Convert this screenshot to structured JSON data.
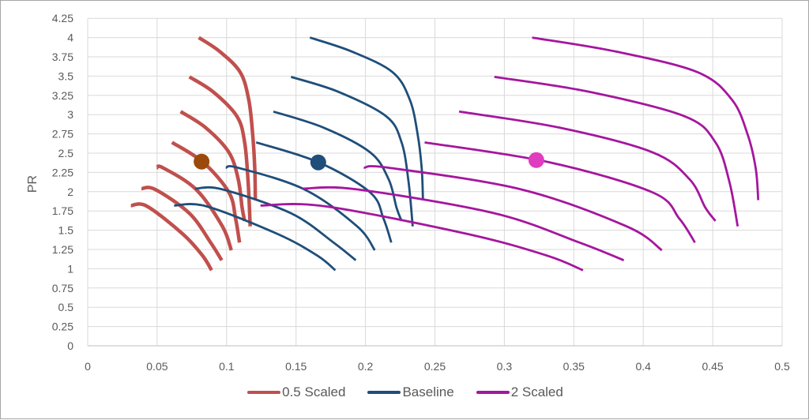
{
  "chart_data": {
    "type": "line",
    "title": "",
    "xlabel": "",
    "ylabel": "PR",
    "xlim": [
      0,
      0.5
    ],
    "ylim": [
      0,
      4.25
    ],
    "xticks": [
      "0",
      "0.05",
      "0.1",
      "0.15",
      "0.2",
      "0.25",
      "0.3",
      "0.35",
      "0.4",
      "0.45",
      "0.5"
    ],
    "yticks": [
      "0",
      "0.25",
      "0.5",
      "0.75",
      "1",
      "1.25",
      "1.5",
      "1.75",
      "2",
      "2.25",
      "2.5",
      "2.75",
      "3",
      "3.25",
      "3.5",
      "3.75",
      "4",
      "4.25"
    ],
    "grid": true,
    "legend_position": "bottom",
    "series": [
      {
        "name": "0.5 Scaled",
        "color": "#c0504d",
        "curves": [
          [
            [
              0.08,
              4.0
            ],
            [
              0.095,
              3.82
            ],
            [
              0.1098,
              3.55
            ],
            [
              0.116,
              3.19
            ],
            [
              0.1188,
              2.74
            ],
            [
              0.1203,
              2.3
            ],
            [
              0.1207,
              1.89
            ]
          ],
          [
            [
              0.0732,
              3.49
            ],
            [
              0.09,
              3.3
            ],
            [
              0.1074,
              2.98
            ],
            [
              0.113,
              2.64
            ],
            [
              0.1155,
              2.13
            ],
            [
              0.117,
              1.55
            ]
          ],
          [
            [
              0.0669,
              3.04
            ],
            [
              0.085,
              2.83
            ],
            [
              0.1017,
              2.51
            ],
            [
              0.1084,
              2.16
            ],
            [
              0.1112,
              1.79
            ],
            [
              0.113,
              1.62
            ]
          ],
          [
            [
              0.0607,
              2.64
            ],
            [
              0.0832,
              2.38
            ],
            [
              0.1017,
              1.99
            ],
            [
              0.1065,
              1.65
            ],
            [
              0.1093,
              1.34
            ]
          ],
          [
            [
              0.0497,
              2.31
            ],
            [
              0.0542,
              2.31
            ],
            [
              0.078,
              2.03
            ],
            [
              0.097,
              1.55
            ],
            [
              0.1034,
              1.24
            ]
          ],
          [
            [
              0.0387,
              2.04
            ],
            [
              0.0485,
              2.03
            ],
            [
              0.0732,
              1.72
            ],
            [
              0.0885,
              1.34
            ],
            [
              0.0965,
              1.11
            ]
          ],
          [
            [
              0.0311,
              1.82
            ],
            [
              0.0428,
              1.81
            ],
            [
              0.0685,
              1.45
            ],
            [
              0.0827,
              1.17
            ],
            [
              0.0892,
              0.98
            ]
          ]
        ]
      },
      {
        "name": "Baseline",
        "color": "#1f4e79",
        "curves": [
          [
            [
              0.16,
              4.0
            ],
            [
              0.19,
              3.82
            ],
            [
              0.2196,
              3.55
            ],
            [
              0.232,
              3.19
            ],
            [
              0.2376,
              2.74
            ],
            [
              0.2405,
              2.3
            ],
            [
              0.2414,
              1.89
            ]
          ],
          [
            [
              0.1464,
              3.49
            ],
            [
              0.18,
              3.3
            ],
            [
              0.2148,
              2.98
            ],
            [
              0.226,
              2.64
            ],
            [
              0.231,
              2.13
            ],
            [
              0.234,
              1.55
            ]
          ],
          [
            [
              0.1337,
              3.04
            ],
            [
              0.17,
              2.83
            ],
            [
              0.2034,
              2.51
            ],
            [
              0.2167,
              2.16
            ],
            [
              0.2224,
              1.79
            ],
            [
              0.226,
              1.62
            ]
          ],
          [
            [
              0.1213,
              2.64
            ],
            [
              0.1664,
              2.38
            ],
            [
              0.2034,
              1.99
            ],
            [
              0.213,
              1.65
            ],
            [
              0.2186,
              1.34
            ]
          ],
          [
            [
              0.0994,
              2.31
            ],
            [
              0.1084,
              2.31
            ],
            [
              0.156,
              2.03
            ],
            [
              0.194,
              1.55
            ],
            [
              0.2067,
              1.24
            ]
          ],
          [
            [
              0.0774,
              2.04
            ],
            [
              0.097,
              2.03
            ],
            [
              0.1464,
              1.72
            ],
            [
              0.177,
              1.34
            ],
            [
              0.193,
              1.11
            ]
          ],
          [
            [
              0.0622,
              1.82
            ],
            [
              0.0856,
              1.81
            ],
            [
              0.1369,
              1.45
            ],
            [
              0.1654,
              1.17
            ],
            [
              0.1783,
              0.98
            ]
          ]
        ]
      },
      {
        "name": "2 Scaled",
        "color": "#a5169e",
        "curves": [
          [
            [
              0.32,
              4.0
            ],
            [
              0.38,
              3.82
            ],
            [
              0.4392,
              3.55
            ],
            [
              0.464,
              3.19
            ],
            [
              0.4752,
              2.74
            ],
            [
              0.481,
              2.3
            ],
            [
              0.4828,
              1.89
            ]
          ],
          [
            [
              0.2928,
              3.49
            ],
            [
              0.36,
              3.3
            ],
            [
              0.4296,
              2.98
            ],
            [
              0.452,
              2.64
            ],
            [
              0.462,
              2.13
            ],
            [
              0.468,
              1.55
            ]
          ],
          [
            [
              0.2674,
              3.04
            ],
            [
              0.34,
              2.83
            ],
            [
              0.4068,
              2.51
            ],
            [
              0.4334,
              2.16
            ],
            [
              0.4448,
              1.79
            ],
            [
              0.452,
              1.62
            ]
          ],
          [
            [
              0.2426,
              2.64
            ],
            [
              0.3328,
              2.38
            ],
            [
              0.4068,
              1.99
            ],
            [
              0.426,
              1.65
            ],
            [
              0.4372,
              1.34
            ]
          ],
          [
            [
              0.1988,
              2.31
            ],
            [
              0.2168,
              2.31
            ],
            [
              0.312,
              2.03
            ],
            [
              0.388,
              1.55
            ],
            [
              0.4134,
              1.24
            ]
          ],
          [
            [
              0.1548,
              2.04
            ],
            [
              0.194,
              2.03
            ],
            [
              0.2928,
              1.72
            ],
            [
              0.354,
              1.34
            ],
            [
              0.386,
              1.11
            ]
          ],
          [
            [
              0.1244,
              1.82
            ],
            [
              0.1712,
              1.81
            ],
            [
              0.2738,
              1.45
            ],
            [
              0.3308,
              1.17
            ],
            [
              0.3566,
              0.98
            ]
          ]
        ]
      }
    ],
    "markers": [
      {
        "x": 0.082,
        "y": 2.39,
        "color": "#9c4a0c"
      },
      {
        "x": 0.166,
        "y": 2.38,
        "color": "#1f4e79"
      },
      {
        "x": 0.323,
        "y": 2.41,
        "color": "#e03cbf"
      }
    ]
  }
}
